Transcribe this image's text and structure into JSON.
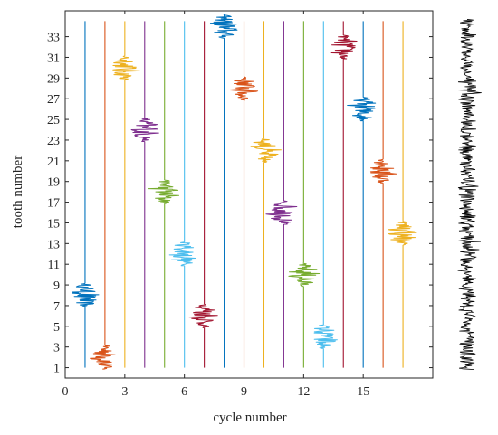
{
  "chart_data": {
    "type": "line",
    "xlabel": "cycle number",
    "ylabel": "tooth number",
    "xlim": [
      0,
      18.5
    ],
    "ylim": [
      0,
      35.5
    ],
    "grid": false,
    "xticks": [
      0,
      3,
      6,
      9,
      12,
      15
    ],
    "yticks": [
      1,
      3,
      5,
      7,
      9,
      11,
      13,
      15,
      17,
      19,
      21,
      23,
      25,
      27,
      29,
      31,
      33
    ],
    "signal_extent_y": [
      1,
      34.5
    ],
    "series": [
      {
        "cycle": 1,
        "tooth": 8,
        "color": "#0072BD"
      },
      {
        "cycle": 2,
        "tooth": 2,
        "color": "#D95319"
      },
      {
        "cycle": 3,
        "tooth": 30,
        "color": "#EDB120"
      },
      {
        "cycle": 4,
        "tooth": 24,
        "color": "#7E2F8E"
      },
      {
        "cycle": 5,
        "tooth": 18,
        "color": "#77AC30"
      },
      {
        "cycle": 6,
        "tooth": 12,
        "color": "#4DBEEE"
      },
      {
        "cycle": 7,
        "tooth": 6,
        "color": "#A2142F"
      },
      {
        "cycle": 8,
        "tooth": 34,
        "color": "#0072BD"
      },
      {
        "cycle": 9,
        "tooth": 28,
        "color": "#D95319"
      },
      {
        "cycle": 10,
        "tooth": 22,
        "color": "#EDB120"
      },
      {
        "cycle": 11,
        "tooth": 16,
        "color": "#7E2F8E"
      },
      {
        "cycle": 12,
        "tooth": 10,
        "color": "#77AC30"
      },
      {
        "cycle": 13,
        "tooth": 4,
        "color": "#4DBEEE"
      },
      {
        "cycle": 14,
        "tooth": 32,
        "color": "#A2142F"
      },
      {
        "cycle": 15,
        "tooth": 26,
        "color": "#0072BD"
      },
      {
        "cycle": 16,
        "tooth": 20,
        "color": "#D95319"
      },
      {
        "cycle": 17,
        "tooth": 14,
        "color": "#EDB120"
      }
    ],
    "side_signal": {
      "color": "#000000"
    }
  }
}
